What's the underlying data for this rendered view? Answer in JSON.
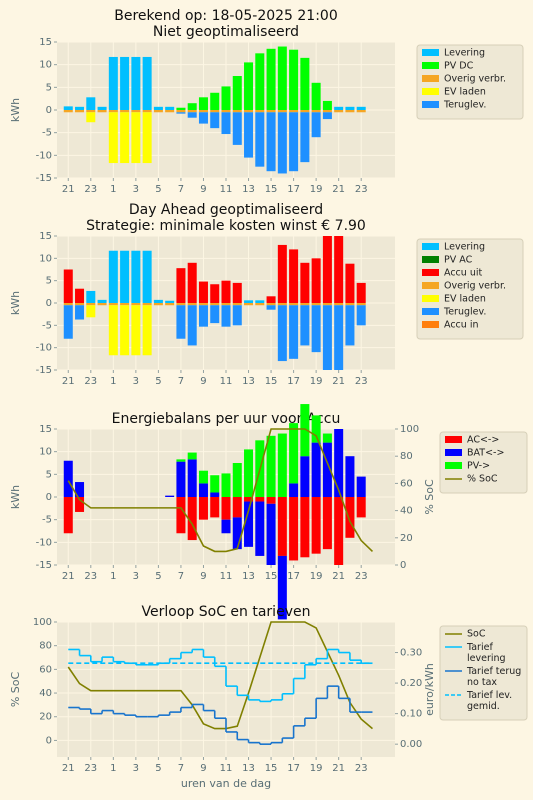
{
  "title": "Berekend op: 18-05-2025 21:00",
  "chart_data": [
    {
      "type": "bar",
      "title": "Niet geoptimaliseerd",
      "ylabel": "kWh",
      "grid": true,
      "legend": "outside right",
      "x": [
        21,
        22,
        23,
        24,
        25,
        26,
        27,
        28,
        29,
        30,
        31,
        32,
        33,
        34,
        35,
        36,
        37,
        38,
        39,
        40,
        41,
        42,
        43,
        44,
        45,
        46,
        47
      ],
      "xlim": [
        20,
        50
      ],
      "xticks": [
        21,
        23,
        {
          "value": 25,
          "label": "1"
        },
        {
          "value": 27,
          "label": "3"
        },
        {
          "value": 29,
          "label": "5"
        },
        {
          "value": 31,
          "label": "7"
        },
        {
          "value": 33,
          "label": "9"
        },
        {
          "value": 35,
          "label": "11"
        },
        {
          "value": 37,
          "label": "13"
        },
        {
          "value": 39,
          "label": "15"
        },
        {
          "value": 41,
          "label": "17"
        },
        {
          "value": 43,
          "label": "19"
        },
        {
          "value": 45,
          "label": "21"
        },
        {
          "value": 47,
          "label": "23"
        }
      ],
      "ylim": [
        -15,
        15
      ],
      "yticks": [
        -15,
        -10,
        -5,
        0,
        5,
        10,
        15
      ],
      "series": [
        {
          "name": "Levering",
          "color": "#00bfff",
          "values": [
            0.8,
            0.7,
            2.8,
            0.7,
            11.7,
            11.7,
            11.7,
            11.7,
            0.7,
            0.7,
            0,
            0,
            0,
            0,
            0,
            0,
            0,
            0,
            0,
            0,
            0,
            0,
            0,
            0,
            0.7,
            0.7,
            0.7
          ]
        },
        {
          "name": "PV DC",
          "color": "#00ff00",
          "values": [
            0,
            0,
            0,
            0,
            0,
            0,
            0,
            0,
            0,
            0,
            0.5,
            1.5,
            2.8,
            3.8,
            5.2,
            7.5,
            10.5,
            12.5,
            13.5,
            14,
            13.3,
            11.5,
            6,
            2,
            0,
            0,
            0
          ]
        },
        {
          "name": "Overig verbr.",
          "color": "#f5a623",
          "values": [
            -0.5,
            -0.5,
            -0.5,
            -0.5,
            -0.5,
            -0.5,
            -0.5,
            -0.5,
            -0.5,
            -0.5,
            -0.5,
            -0.5,
            -0.5,
            -0.5,
            -0.5,
            -0.5,
            -0.5,
            -0.5,
            -0.5,
            -0.5,
            -0.5,
            -0.5,
            -0.5,
            -0.5,
            -0.5,
            -0.5,
            -0.5
          ]
        },
        {
          "name": "EV laden",
          "color": "#ffff00",
          "values": [
            0,
            0,
            -2.2,
            0,
            -11.2,
            -11.2,
            -11.2,
            -11.2,
            0,
            0,
            0,
            0,
            0,
            0,
            0,
            0,
            0,
            0,
            0,
            0,
            0,
            0,
            0,
            0,
            0,
            0,
            0
          ]
        },
        {
          "name": "Teruglev.",
          "color": "#1e90ff",
          "values": [
            0,
            0,
            0,
            0,
            0,
            0,
            0,
            0,
            0,
            0,
            -0.3,
            -1.2,
            -2.5,
            -3.5,
            -4.8,
            -7.2,
            -10,
            -12,
            -13,
            -13.5,
            -13,
            -11,
            -5.5,
            -1.5,
            0,
            0,
            0
          ]
        }
      ]
    },
    {
      "type": "bar",
      "title": "Day Ahead geoptimaliseerd",
      "subtitle": "Strategie: minimale kosten winst € 7.90",
      "ylabel": "kWh",
      "grid": true,
      "legend": "outside right",
      "x": [
        21,
        22,
        23,
        24,
        25,
        26,
        27,
        28,
        29,
        30,
        31,
        32,
        33,
        34,
        35,
        36,
        37,
        38,
        39,
        40,
        41,
        42,
        43,
        44,
        45,
        46,
        47
      ],
      "xlim": [
        20,
        50
      ],
      "xticks": [
        21,
        23,
        {
          "value": 25,
          "label": "1"
        },
        {
          "value": 27,
          "label": "3"
        },
        {
          "value": 29,
          "label": "5"
        },
        {
          "value": 31,
          "label": "7"
        },
        {
          "value": 33,
          "label": "9"
        },
        {
          "value": 35,
          "label": "11"
        },
        {
          "value": 37,
          "label": "13"
        },
        {
          "value": 39,
          "label": "15"
        },
        {
          "value": 41,
          "label": "17"
        },
        {
          "value": 43,
          "label": "19"
        },
        {
          "value": 45,
          "label": "21"
        },
        {
          "value": 47,
          "label": "23"
        }
      ],
      "ylim": [
        -15,
        15
      ],
      "yticks": [
        -15,
        -10,
        -5,
        0,
        5,
        10,
        15
      ],
      "series": [
        {
          "name": "Levering",
          "color": "#00bfff",
          "values": [
            0,
            0,
            2.7,
            0.7,
            11.7,
            11.7,
            11.7,
            11.7,
            0.7,
            0.5,
            0,
            0,
            0,
            0,
            0,
            0,
            0.6,
            0.6,
            0,
            0,
            0,
            0,
            0,
            0,
            0,
            0,
            0
          ]
        },
        {
          "name": "PV AC",
          "color": "#008000",
          "values": [
            0,
            0,
            0,
            0,
            0,
            0,
            0,
            0,
            0,
            0,
            0,
            0,
            0,
            0,
            0,
            0,
            0,
            0,
            0,
            0,
            0,
            0,
            0,
            0,
            0,
            0,
            0
          ]
        },
        {
          "name": "Accu uit",
          "color": "#ff0000",
          "values": [
            7.5,
            3.2,
            0,
            0,
            0,
            0,
            0,
            0,
            0,
            0,
            7.8,
            9,
            4.8,
            4.2,
            5,
            4.5,
            0,
            0,
            1.5,
            13,
            12,
            9,
            10,
            15,
            15,
            8.8,
            4.5
          ]
        },
        {
          "name": "Overig verbr.",
          "color": "#f5a623",
          "values": [
            -0.5,
            -0.5,
            -0.5,
            -0.5,
            -0.5,
            -0.5,
            -0.5,
            -0.5,
            -0.5,
            -0.5,
            -0.5,
            -0.5,
            -0.5,
            -0.5,
            -0.5,
            -0.5,
            -0.5,
            -0.5,
            -0.5,
            -0.5,
            -0.5,
            -0.5,
            -0.5,
            -0.5,
            -0.5,
            -0.5,
            -0.5
          ]
        },
        {
          "name": "EV laden",
          "color": "#ffff00",
          "values": [
            0,
            0,
            -2.7,
            0,
            -11.2,
            -11.2,
            -11.2,
            -11.2,
            0,
            0,
            0,
            0,
            0,
            0,
            0,
            0,
            0,
            0,
            0,
            0,
            0,
            0,
            0,
            0,
            0,
            0,
            0
          ]
        },
        {
          "name": "Teruglev.",
          "color": "#1e90ff",
          "values": [
            -7.5,
            -3.2,
            0,
            0,
            0,
            0,
            0,
            0,
            0,
            0,
            -7.5,
            -9,
            -4.8,
            -4,
            -4.8,
            -4.5,
            0,
            0,
            -1,
            -12.5,
            -12,
            -9,
            -10.5,
            -14.5,
            -14.5,
            -9,
            -4.5
          ]
        },
        {
          "name": "Accu in",
          "color": "#ff7f0e",
          "values": [
            0,
            0,
            0,
            0,
            0,
            0,
            0,
            0,
            0,
            0,
            0,
            0,
            0,
            0,
            0,
            0,
            0,
            0,
            0,
            0,
            0,
            0,
            0,
            0,
            0,
            0,
            0
          ]
        }
      ]
    },
    {
      "type": "bar",
      "title": "Energiebalans per uur voor Accu",
      "ylabel": "kWh",
      "y2label": "% SoC",
      "grid": true,
      "legend": "outside right",
      "x": [
        21,
        22,
        23,
        24,
        25,
        26,
        27,
        28,
        29,
        30,
        31,
        32,
        33,
        34,
        35,
        36,
        37,
        38,
        39,
        40,
        41,
        42,
        43,
        44,
        45,
        46,
        47
      ],
      "xlim": [
        20,
        50
      ],
      "xticks": [
        21,
        23,
        {
          "value": 25,
          "label": "1"
        },
        {
          "value": 27,
          "label": "3"
        },
        {
          "value": 29,
          "label": "5"
        },
        {
          "value": 31,
          "label": "7"
        },
        {
          "value": 33,
          "label": "9"
        },
        {
          "value": 35,
          "label": "11"
        },
        {
          "value": 37,
          "label": "13"
        },
        {
          "value": 39,
          "label": "15"
        },
        {
          "value": 41,
          "label": "17"
        },
        {
          "value": 43,
          "label": "19"
        },
        {
          "value": 45,
          "label": "21"
        },
        {
          "value": 47,
          "label": "23"
        }
      ],
      "ylim": [
        -15,
        15
      ],
      "yticks": [
        -15,
        -10,
        -5,
        0,
        5,
        10,
        15
      ],
      "y2lim": [
        0,
        100
      ],
      "y2ticks": [
        0,
        20,
        40,
        60,
        80,
        100
      ],
      "series": [
        {
          "name": "AC<->",
          "color": "#ff0000",
          "values": [
            -8,
            -3.3,
            0,
            0,
            0,
            0,
            0,
            0,
            0,
            0,
            -8,
            -9.5,
            -5,
            -4.5,
            -5,
            -4.5,
            -1,
            -1,
            -1.5,
            -13,
            -14,
            -13.3,
            -12.5,
            -11.5,
            -15,
            -9,
            -4.5
          ]
        },
        {
          "name": "BAT<->",
          "color": "#0000ff",
          "values": [
            8,
            3.3,
            0,
            0,
            0,
            0,
            0,
            0,
            0,
            0.3,
            7.8,
            8.3,
            3,
            1,
            -3,
            -7,
            -10,
            -12,
            -13.5,
            -14,
            3,
            9,
            12,
            12,
            15,
            9,
            4.5
          ]
        },
        {
          "name": "PV->",
          "color": "#00ff00",
          "values": [
            0,
            0,
            0,
            0,
            0,
            0,
            0,
            0,
            0,
            0,
            0.5,
            1.5,
            2.8,
            3.8,
            5.2,
            7.5,
            10.5,
            12.5,
            13.5,
            14,
            13.3,
            11.5,
            6,
            2,
            0,
            0,
            0
          ]
        },
        {
          "name": "% SoC",
          "kind": "line",
          "axis": "y2",
          "color": "#808000",
          "x": [
            21,
            22,
            23,
            24,
            25,
            26,
            27,
            28,
            29,
            30,
            31,
            32,
            33,
            34,
            35,
            36,
            37,
            38,
            39,
            40,
            41,
            42,
            43,
            44,
            45,
            46,
            47,
            48
          ],
          "values": [
            62,
            48,
            42,
            42,
            42,
            42,
            42,
            42,
            42,
            42,
            42,
            30,
            14,
            10,
            10,
            12,
            40,
            70,
            100,
            100,
            100,
            100,
            95,
            75,
            55,
            32,
            18,
            10
          ]
        }
      ]
    },
    {
      "type": "line",
      "title": "Verloop SoC en tarieven",
      "ylabel": "% SoC",
      "y2label": "euro/kWh",
      "xlabel": "uren van de dag",
      "grid": true,
      "legend": "outside right",
      "x": [
        21,
        22,
        23,
        24,
        25,
        26,
        27,
        28,
        29,
        30,
        31,
        32,
        33,
        34,
        35,
        36,
        37,
        38,
        39,
        40,
        41,
        42,
        43,
        44,
        45,
        46,
        47,
        48
      ],
      "xlim": [
        20,
        50
      ],
      "xticks": [
        21,
        23,
        {
          "value": 25,
          "label": "1"
        },
        {
          "value": 27,
          "label": "3"
        },
        {
          "value": 29,
          "label": "5"
        },
        {
          "value": 31,
          "label": "7"
        },
        {
          "value": 33,
          "label": "9"
        },
        {
          "value": 35,
          "label": "11"
        },
        {
          "value": 37,
          "label": "13"
        },
        {
          "value": 39,
          "label": "15"
        },
        {
          "value": 41,
          "label": "17"
        },
        {
          "value": 43,
          "label": "19"
        },
        {
          "value": 45,
          "label": "21"
        },
        {
          "value": 47,
          "label": "23"
        }
      ],
      "ylim": [
        -14,
        100
      ],
      "yticks": [
        0,
        20,
        40,
        60,
        80,
        100
      ],
      "y2lim": [
        -0.042,
        0.4
      ],
      "y2ticks": [
        {
          "value": 0,
          "label": "0.00"
        },
        {
          "value": 0.1,
          "label": "0.10"
        },
        {
          "value": 0.2,
          "label": "0.20"
        },
        {
          "value": 0.3,
          "label": "0.30"
        }
      ],
      "series": [
        {
          "name": "SoC",
          "color": "#808000",
          "values": [
            62,
            48,
            42,
            42,
            42,
            42,
            42,
            42,
            42,
            42,
            42,
            30,
            14,
            10,
            10,
            12,
            40,
            70,
            100,
            100,
            100,
            100,
            95,
            75,
            55,
            32,
            18,
            10
          ]
        },
        {
          "name": "Tarief\nlevering",
          "color": "#00bfff",
          "axis": "y2",
          "step": true,
          "values": [
            0.31,
            0.29,
            0.27,
            0.285,
            0.27,
            0.265,
            0.26,
            0.26,
            0.265,
            0.28,
            0.3,
            0.31,
            0.285,
            0.255,
            0.19,
            0.16,
            0.145,
            0.14,
            0.145,
            0.165,
            0.215,
            0.26,
            0.28,
            0.31,
            0.3,
            0.275,
            0.265,
            0.265
          ]
        },
        {
          "name": "Tarief terug\nno tax",
          "color": "#1874cd",
          "axis": "y2",
          "step": true,
          "values": [
            0.12,
            0.115,
            0.1,
            0.11,
            0.1,
            0.095,
            0.09,
            0.09,
            0.095,
            0.105,
            0.12,
            0.13,
            0.11,
            0.085,
            0.04,
            0.015,
            0.005,
            0.0,
            0.005,
            0.02,
            0.06,
            0.085,
            0.15,
            0.19,
            0.15,
            0.105,
            0.105,
            0.105
          ]
        },
        {
          "name": "Tarief lev.\ngemid.",
          "color": "#00bfff",
          "axis": "y2",
          "dashed": true,
          "values": [
            0.265,
            0.265,
            0.265,
            0.265,
            0.265,
            0.265,
            0.265,
            0.265,
            0.265,
            0.265,
            0.265,
            0.265,
            0.265,
            0.265,
            0.265,
            0.265,
            0.265,
            0.265,
            0.265,
            0.265,
            0.265,
            0.265,
            0.265,
            0.265,
            0.265,
            0.265,
            0.265,
            0.265
          ]
        }
      ]
    }
  ]
}
